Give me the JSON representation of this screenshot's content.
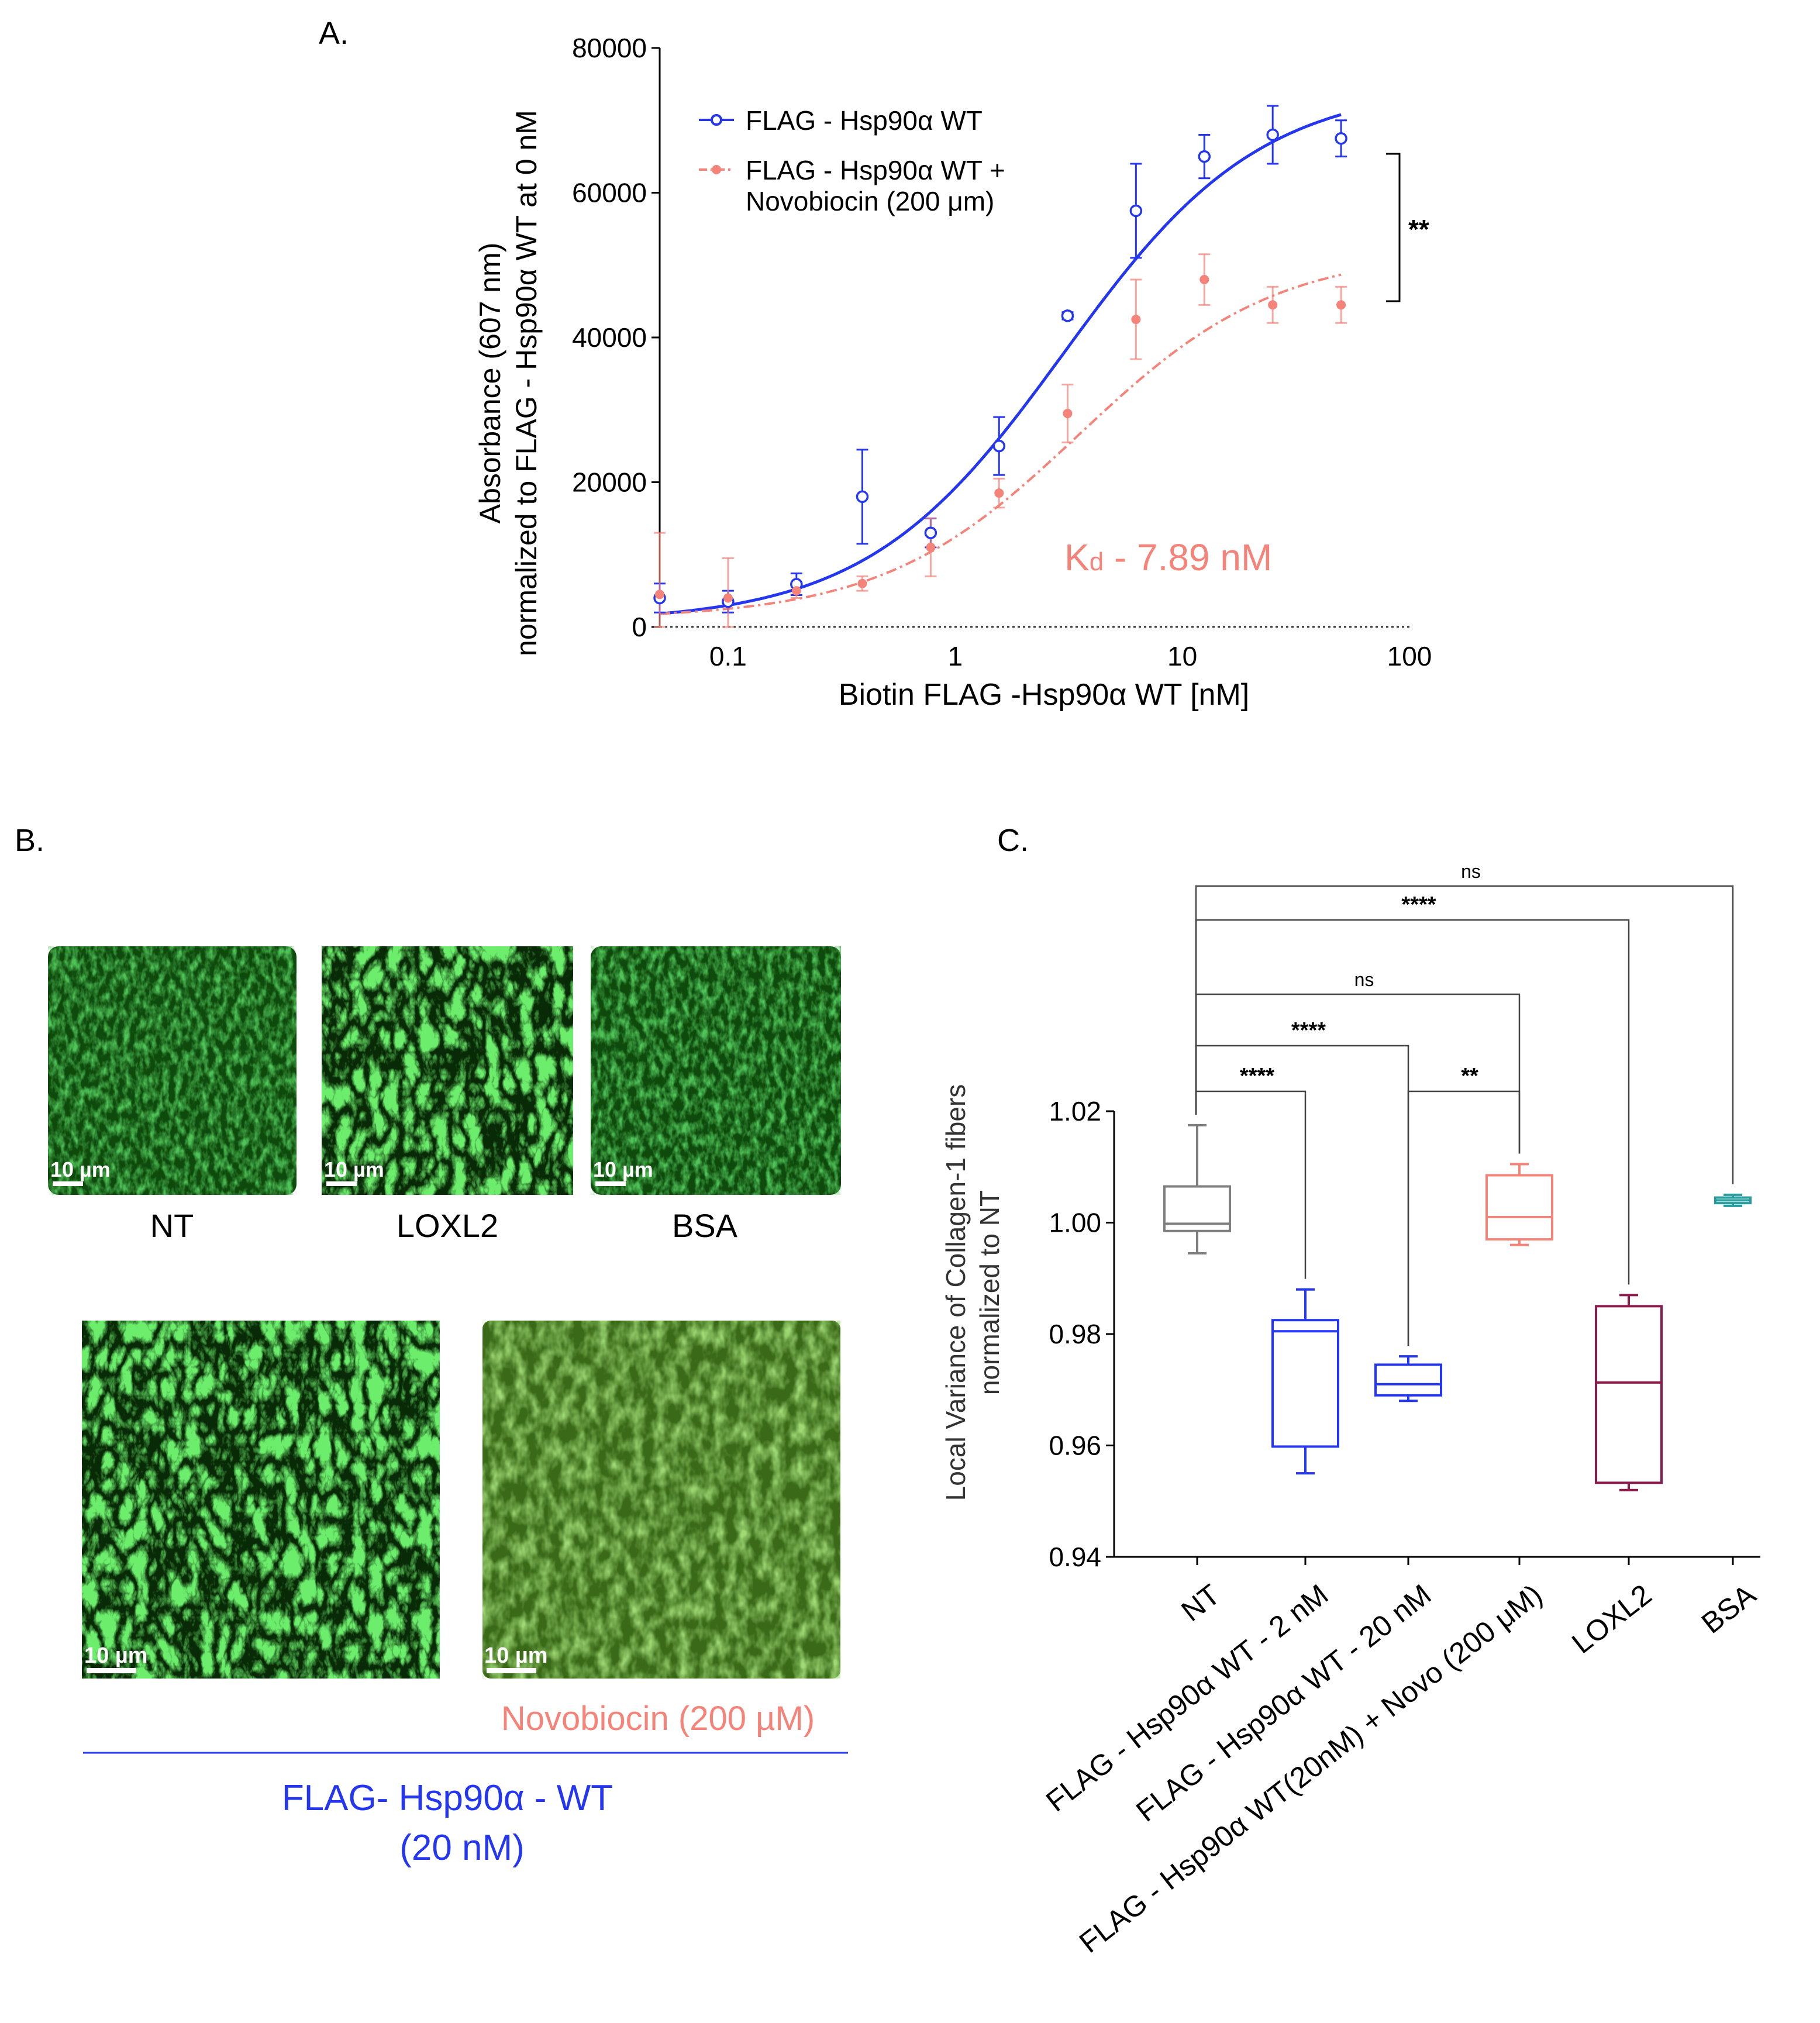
{
  "panels": {
    "a": "A.",
    "b": "B.",
    "c": "C."
  },
  "colors": {
    "wt": "#2436f0",
    "novo": "#f4837a",
    "nt": "#7f7f7f",
    "teal": "#2a9b9b",
    "maroon": "#8e1b4e",
    "micro_dark": "#0a2a08",
    "micro_fiber": "#35d830",
    "micro_novo": "#5aa02e"
  },
  "chart_data": [
    {
      "type": "scatter",
      "xscale": "log",
      "xlim": [
        0.05,
        100
      ],
      "ylim": [
        0,
        80000
      ],
      "xlabel": "Biotin FLAG -Hsp90α WT [nM]",
      "ylabel": [
        "Absorbance (607 nm)",
        "normalized  to FLAG - Hsp90α WT at 0 nM"
      ],
      "xticks": [
        0.1,
        1,
        10,
        100
      ],
      "xtick_labels": [
        "0.1",
        "1",
        "10",
        "100"
      ],
      "yticks": [
        0,
        20000,
        40000,
        60000,
        80000
      ],
      "ytick_labels": [
        "0",
        "20000",
        "40000",
        "60000",
        "80000"
      ],
      "legend_position": "top-left",
      "annotation": {
        "prefix": "K",
        "subscript": "d",
        "text": " - 7.89 nM"
      },
      "significance": "**",
      "series": [
        {
          "name": "FLAG - Hsp90α WT",
          "x": [
            0.05,
            0.1,
            0.2,
            0.39,
            0.78,
            1.56,
            3.125,
            6.25,
            12.5,
            25,
            50
          ],
          "y": [
            4000,
            3500,
            5900,
            18000,
            13000,
            25000,
            43000,
            57500,
            65000,
            68000,
            67500
          ],
          "err": [
            2000,
            1500,
            1500,
            6500,
            2000,
            4000,
            500,
            6500,
            3000,
            4000,
            2500
          ],
          "fit": {
            "bottom": 600,
            "top": 75000,
            "ec50": 3.0,
            "hill": 1.0
          }
        },
        {
          "name": [
            "FLAG - Hsp90α WT +",
            "Novobiocin (200 μm)"
          ],
          "x": [
            0.05,
            0.1,
            0.2,
            0.39,
            0.78,
            1.56,
            3.125,
            6.25,
            12.5,
            25,
            50
          ],
          "y": [
            4500,
            4000,
            5000,
            6000,
            11000,
            18500,
            29500,
            42500,
            48000,
            44500,
            44500
          ],
          "err": [
            8500,
            5500,
            1000,
            1000,
            4000,
            2000,
            4000,
            5500,
            3500,
            2500,
            2500
          ],
          "fit": {
            "bottom": 1100,
            "top": 52000,
            "ec50": 3.5,
            "hill": 1.0
          }
        }
      ]
    },
    {
      "type": "box",
      "ylim": [
        0.94,
        1.02
      ],
      "ylabel": [
        "Local Variance of Collagen-1 fibers",
        "normalized to NT"
      ],
      "yticks": [
        0.94,
        0.96,
        0.98,
        1.0,
        1.02
      ],
      "ytick_labels": [
        "0.94",
        "0.96",
        "0.98",
        "1.00",
        "1.02"
      ],
      "categories": [
        "NT",
        "FLAG - Hsp90α WT - 2 nM",
        "FLAG - Hsp90α WT - 20 nM",
        "FLAG - Hsp90α WT(20nM) + Novo (200 μM)",
        "LOXL2",
        "BSA"
      ],
      "boxes": [
        {
          "min": 0.9945,
          "q1": 0.9985,
          "median": 0.9998,
          "q3": 1.0065,
          "max": 1.0175
        },
        {
          "min": 0.955,
          "q1": 0.9598,
          "median": 0.9805,
          "q3": 0.9825,
          "max": 0.988
        },
        {
          "min": 0.968,
          "q1": 0.969,
          "median": 0.971,
          "q3": 0.9745,
          "max": 0.976
        },
        {
          "min": 0.996,
          "q1": 0.997,
          "median": 1.001,
          "q3": 1.0085,
          "max": 1.0105
        },
        {
          "min": 0.952,
          "q1": 0.9533,
          "median": 0.9713,
          "q3": 0.985,
          "max": 0.987
        },
        {
          "min": 1.003,
          "q1": 1.0035,
          "median": 1.004,
          "q3": 1.0045,
          "max": 1.005
        }
      ],
      "comparisons": [
        {
          "from": 0,
          "to": 5,
          "label": "ns"
        },
        {
          "from": 0,
          "to": 4,
          "label": "****"
        },
        {
          "from": 0,
          "to": 3,
          "label": "ns"
        },
        {
          "from": 0,
          "to": 2,
          "label": "****"
        },
        {
          "from": 0,
          "to": 1,
          "label": "****"
        },
        {
          "from": 2,
          "to": 3,
          "label": "**"
        }
      ]
    }
  ],
  "panel_b": {
    "scale_bar": "10 µm",
    "images": [
      {
        "label": "NT"
      },
      {
        "label": "LOXL2"
      },
      {
        "label": "BSA"
      },
      {
        "label": ""
      },
      {
        "label": "Novobiocin (200 µM)"
      }
    ],
    "group_label": [
      "FLAG- Hsp90α - WT",
      "(20 nM)"
    ]
  }
}
